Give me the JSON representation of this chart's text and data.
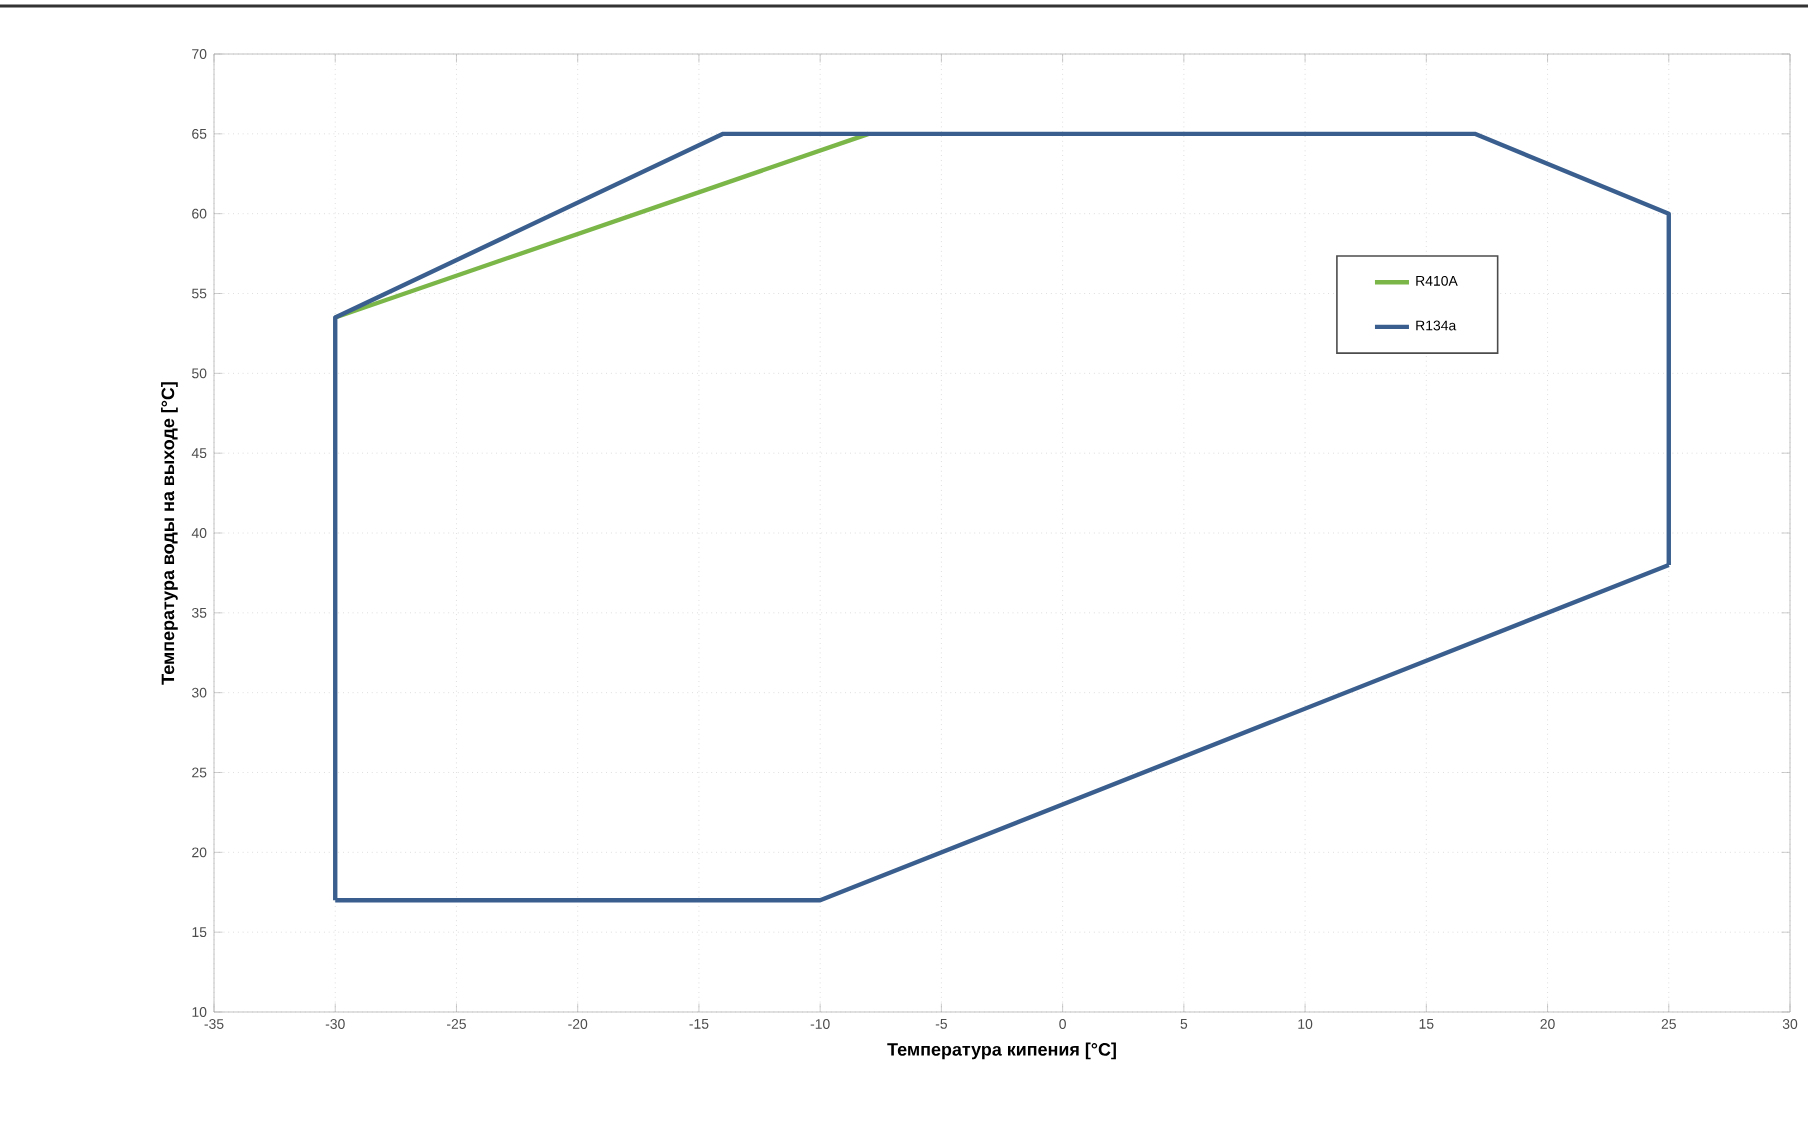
{
  "chart_data": {
    "type": "line",
    "xlabel": "Температура кипения [°C]",
    "ylabel": "Температура воды на выходе [°C]",
    "xlim": [
      -35,
      30
    ],
    "xticks": [
      -35,
      -30,
      -25,
      -20,
      -15,
      -10,
      -5,
      0,
      5,
      10,
      15,
      20,
      25,
      30
    ],
    "ylim": [
      10,
      70
    ],
    "yticks": [
      10,
      15,
      20,
      25,
      30,
      35,
      40,
      45,
      50,
      55,
      60,
      65,
      70
    ],
    "grid": true,
    "legend": "top right",
    "line_style": "solid",
    "marker": "none",
    "series": [
      {
        "name": "R410A",
        "color": "#7ab648",
        "x": [
          -30,
          -8
        ],
        "values": [
          53.5,
          65
        ]
      },
      {
        "name": "R134a",
        "color": "#3a5f8f",
        "x": [
          -30,
          -30,
          -14,
          17,
          25,
          25
        ],
        "values": [
          17,
          53.5,
          65,
          65,
          60,
          38
        ]
      },
      {
        "color": "#3a5f8f",
        "x": [
          -30,
          -10,
          25
        ],
        "values": [
          17,
          17,
          38
        ]
      }
    ]
  }
}
